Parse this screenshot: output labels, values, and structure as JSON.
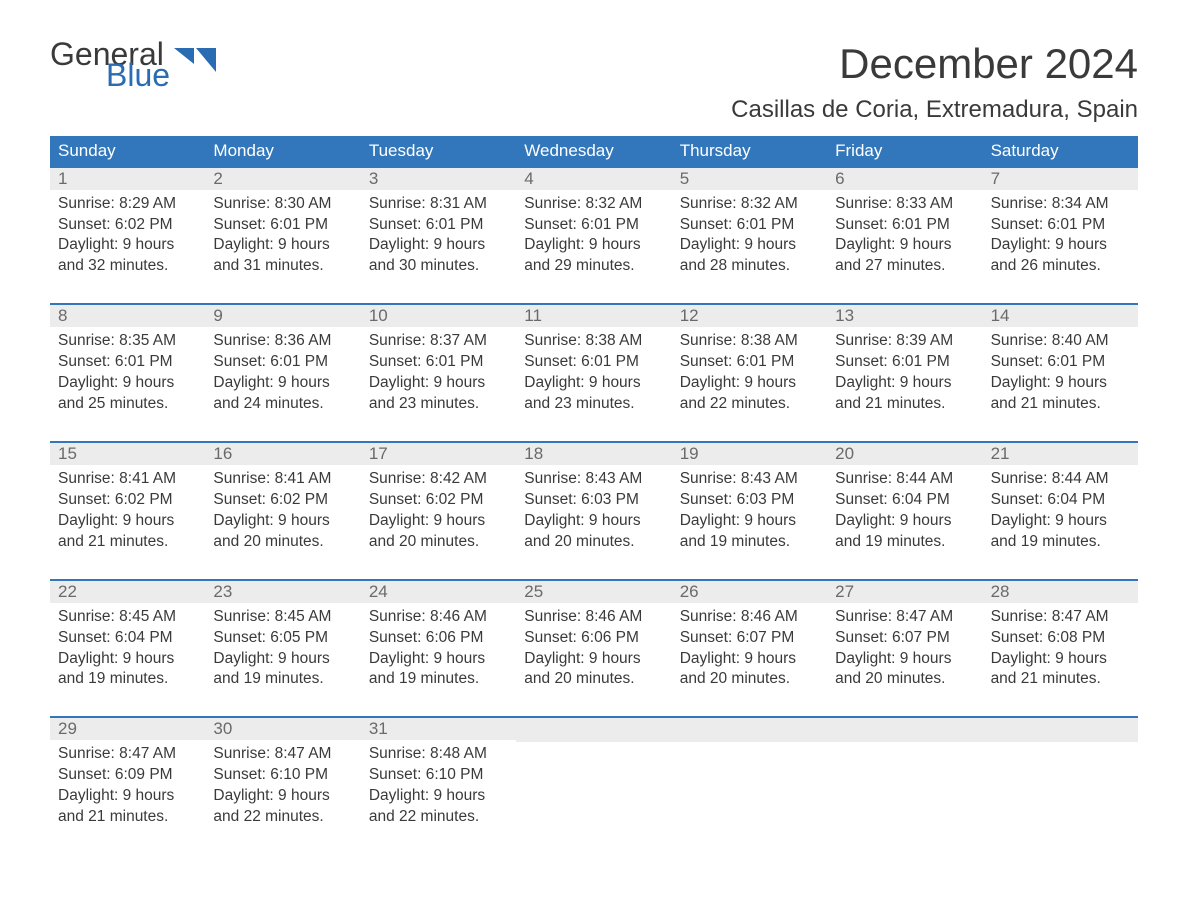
{
  "logo": {
    "text1": "General",
    "text2": "Blue",
    "icon_color": "#2a6cb1"
  },
  "title": "December 2024",
  "location": "Casillas de Coria, Extremadura, Spain",
  "colors": {
    "header_bg": "#3277bb",
    "header_text": "#ffffff",
    "daynum_bg": "#ececec",
    "daynum_text": "#6a6a6a",
    "body_text": "#3a3a3a",
    "week_border": "#3277bb",
    "logo_accent": "#2a6cb1",
    "page_bg": "#ffffff"
  },
  "weekdays": [
    "Sunday",
    "Monday",
    "Tuesday",
    "Wednesday",
    "Thursday",
    "Friday",
    "Saturday"
  ],
  "weeks": [
    [
      {
        "n": "1",
        "sr": "8:29 AM",
        "ss": "6:02 PM",
        "dl": "9 hours and 32 minutes."
      },
      {
        "n": "2",
        "sr": "8:30 AM",
        "ss": "6:01 PM",
        "dl": "9 hours and 31 minutes."
      },
      {
        "n": "3",
        "sr": "8:31 AM",
        "ss": "6:01 PM",
        "dl": "9 hours and 30 minutes."
      },
      {
        "n": "4",
        "sr": "8:32 AM",
        "ss": "6:01 PM",
        "dl": "9 hours and 29 minutes."
      },
      {
        "n": "5",
        "sr": "8:32 AM",
        "ss": "6:01 PM",
        "dl": "9 hours and 28 minutes."
      },
      {
        "n": "6",
        "sr": "8:33 AM",
        "ss": "6:01 PM",
        "dl": "9 hours and 27 minutes."
      },
      {
        "n": "7",
        "sr": "8:34 AM",
        "ss": "6:01 PM",
        "dl": "9 hours and 26 minutes."
      }
    ],
    [
      {
        "n": "8",
        "sr": "8:35 AM",
        "ss": "6:01 PM",
        "dl": "9 hours and 25 minutes."
      },
      {
        "n": "9",
        "sr": "8:36 AM",
        "ss": "6:01 PM",
        "dl": "9 hours and 24 minutes."
      },
      {
        "n": "10",
        "sr": "8:37 AM",
        "ss": "6:01 PM",
        "dl": "9 hours and 23 minutes."
      },
      {
        "n": "11",
        "sr": "8:38 AM",
        "ss": "6:01 PM",
        "dl": "9 hours and 23 minutes."
      },
      {
        "n": "12",
        "sr": "8:38 AM",
        "ss": "6:01 PM",
        "dl": "9 hours and 22 minutes."
      },
      {
        "n": "13",
        "sr": "8:39 AM",
        "ss": "6:01 PM",
        "dl": "9 hours and 21 minutes."
      },
      {
        "n": "14",
        "sr": "8:40 AM",
        "ss": "6:01 PM",
        "dl": "9 hours and 21 minutes."
      }
    ],
    [
      {
        "n": "15",
        "sr": "8:41 AM",
        "ss": "6:02 PM",
        "dl": "9 hours and 21 minutes."
      },
      {
        "n": "16",
        "sr": "8:41 AM",
        "ss": "6:02 PM",
        "dl": "9 hours and 20 minutes."
      },
      {
        "n": "17",
        "sr": "8:42 AM",
        "ss": "6:02 PM",
        "dl": "9 hours and 20 minutes."
      },
      {
        "n": "18",
        "sr": "8:43 AM",
        "ss": "6:03 PM",
        "dl": "9 hours and 20 minutes."
      },
      {
        "n": "19",
        "sr": "8:43 AM",
        "ss": "6:03 PM",
        "dl": "9 hours and 19 minutes."
      },
      {
        "n": "20",
        "sr": "8:44 AM",
        "ss": "6:04 PM",
        "dl": "9 hours and 19 minutes."
      },
      {
        "n": "21",
        "sr": "8:44 AM",
        "ss": "6:04 PM",
        "dl": "9 hours and 19 minutes."
      }
    ],
    [
      {
        "n": "22",
        "sr": "8:45 AM",
        "ss": "6:04 PM",
        "dl": "9 hours and 19 minutes."
      },
      {
        "n": "23",
        "sr": "8:45 AM",
        "ss": "6:05 PM",
        "dl": "9 hours and 19 minutes."
      },
      {
        "n": "24",
        "sr": "8:46 AM",
        "ss": "6:06 PM",
        "dl": "9 hours and 19 minutes."
      },
      {
        "n": "25",
        "sr": "8:46 AM",
        "ss": "6:06 PM",
        "dl": "9 hours and 20 minutes."
      },
      {
        "n": "26",
        "sr": "8:46 AM",
        "ss": "6:07 PM",
        "dl": "9 hours and 20 minutes."
      },
      {
        "n": "27",
        "sr": "8:47 AM",
        "ss": "6:07 PM",
        "dl": "9 hours and 20 minutes."
      },
      {
        "n": "28",
        "sr": "8:47 AM",
        "ss": "6:08 PM",
        "dl": "9 hours and 21 minutes."
      }
    ],
    [
      {
        "n": "29",
        "sr": "8:47 AM",
        "ss": "6:09 PM",
        "dl": "9 hours and 21 minutes."
      },
      {
        "n": "30",
        "sr": "8:47 AM",
        "ss": "6:10 PM",
        "dl": "9 hours and 22 minutes."
      },
      {
        "n": "31",
        "sr": "8:48 AM",
        "ss": "6:10 PM",
        "dl": "9 hours and 22 minutes."
      },
      null,
      null,
      null,
      null
    ]
  ],
  "labels": {
    "sunrise": "Sunrise: ",
    "sunset": "Sunset: ",
    "daylight": "Daylight: "
  }
}
